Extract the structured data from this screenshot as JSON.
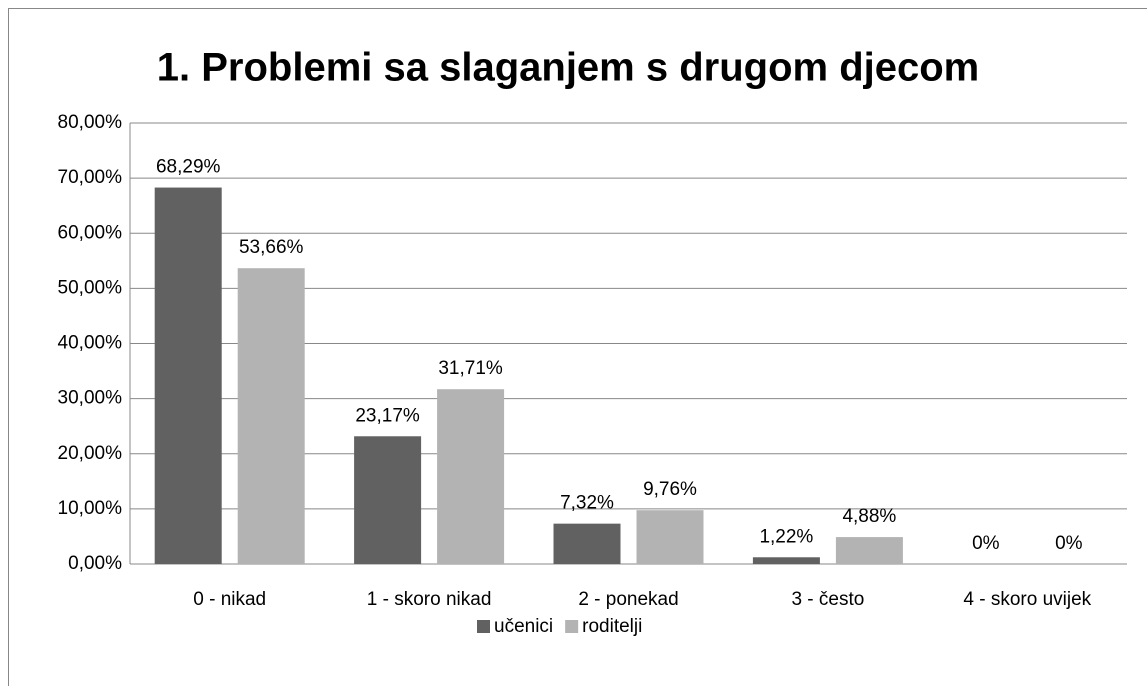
{
  "chart_data": {
    "type": "bar",
    "title": "1. Problemi sa slaganjem s drugom djecom",
    "categories": [
      "0 - nikad",
      "1 - skoro nikad",
      "2 - ponekad",
      "3 - često",
      "4 - skoro uvijek"
    ],
    "series": [
      {
        "name": "učenici",
        "color": "#616161",
        "values": [
          68.29,
          23.17,
          7.32,
          1.22,
          0
        ],
        "value_labels": [
          "68,29%",
          "23,17%",
          "7,32%",
          "1,22%",
          "0%"
        ]
      },
      {
        "name": "roditelji",
        "color": "#b3b3b3",
        "values": [
          53.66,
          31.71,
          9.76,
          4.88,
          0
        ],
        "value_labels": [
          "53,66%",
          "31,71%",
          "9,76%",
          "4,88%",
          "0%"
        ]
      }
    ],
    "ylim": [
      0,
      80
    ],
    "yticks": [
      {
        "value": 0,
        "label": "0,00%"
      },
      {
        "value": 10,
        "label": "10,00%"
      },
      {
        "value": 20,
        "label": "20,00%"
      },
      {
        "value": 30,
        "label": "30,00%"
      },
      {
        "value": 40,
        "label": "40,00%"
      },
      {
        "value": 50,
        "label": "50,00%"
      },
      {
        "value": 60,
        "label": "60,00%"
      },
      {
        "value": 70,
        "label": "70,00%"
      },
      {
        "value": 80,
        "label": "80,00%"
      }
    ],
    "grid": true,
    "legend": "bottom"
  }
}
